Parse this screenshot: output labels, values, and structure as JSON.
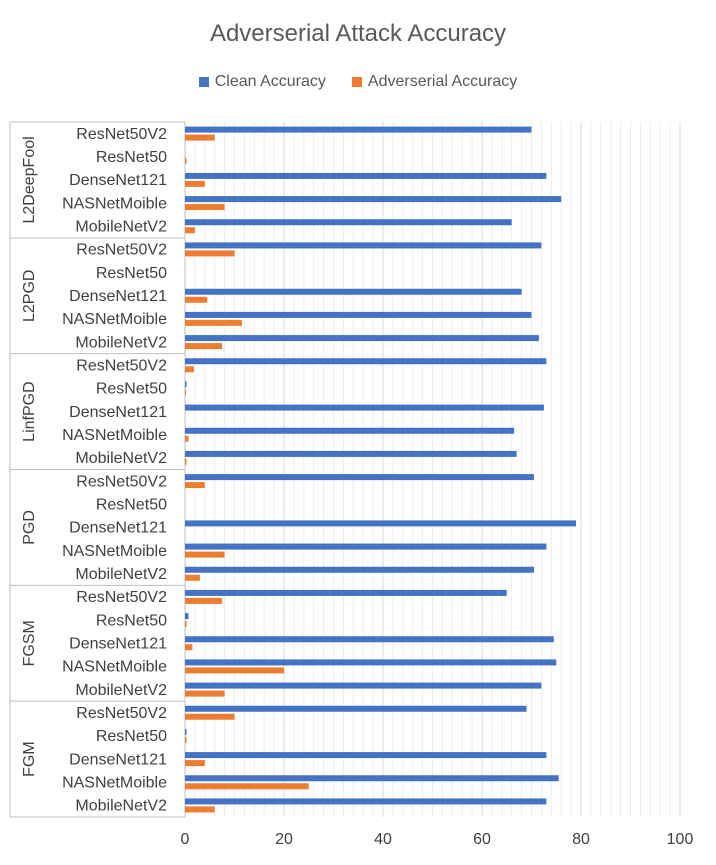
{
  "chart_data": {
    "type": "bar",
    "orientation": "horizontal",
    "title": "Adverserial Attack Accuracy",
    "xlabel": "",
    "ylabel": "",
    "xlim": [
      0,
      100
    ],
    "x_ticks": [
      0,
      20,
      40,
      60,
      80,
      100
    ],
    "minor_gridlines_step": 2,
    "colors": {
      "Clean Accuracy": "#4472C4",
      "Adverserial Accuracy": "#ED7D31"
    },
    "legend_position": "top",
    "legend": [
      "Clean Accuracy",
      "Adverserial Accuracy"
    ],
    "groups": [
      {
        "name": "L2DeepFool",
        "items": [
          {
            "model": "ResNet50V2",
            "clean": 70,
            "adv": 6
          },
          {
            "model": "ResNet50",
            "clean": 0,
            "adv": 0.3
          },
          {
            "model": "DenseNet121",
            "clean": 73,
            "adv": 4
          },
          {
            "model": "NASNetMoible",
            "clean": 76,
            "adv": 8
          },
          {
            "model": "MobileNetV2",
            "clean": 66,
            "adv": 2
          }
        ]
      },
      {
        "name": "L2PGD",
        "items": [
          {
            "model": "ResNet50V2",
            "clean": 72,
            "adv": 10
          },
          {
            "model": "ResNet50",
            "clean": 0,
            "adv": 0
          },
          {
            "model": "DenseNet121",
            "clean": 68,
            "adv": 4.5
          },
          {
            "model": "NASNetMoible",
            "clean": 70,
            "adv": 11.5
          },
          {
            "model": "MobileNetV2",
            "clean": 71.5,
            "adv": 7.5
          }
        ]
      },
      {
        "name": "LinfPGD",
        "items": [
          {
            "model": "ResNet50V2",
            "clean": 73,
            "adv": 1.8
          },
          {
            "model": "ResNet50",
            "clean": 0.3,
            "adv": 0.2
          },
          {
            "model": "DenseNet121",
            "clean": 72.5,
            "adv": 0
          },
          {
            "model": "NASNetMoible",
            "clean": 66.5,
            "adv": 0.7
          },
          {
            "model": "MobileNetV2",
            "clean": 67,
            "adv": 0.3
          }
        ]
      },
      {
        "name": "PGD",
        "items": [
          {
            "model": "ResNet50V2",
            "clean": 70.5,
            "adv": 4
          },
          {
            "model": "ResNet50",
            "clean": 0,
            "adv": 0
          },
          {
            "model": "DenseNet121",
            "clean": 79,
            "adv": 0
          },
          {
            "model": "NASNetMoible",
            "clean": 73,
            "adv": 8
          },
          {
            "model": "MobileNetV2",
            "clean": 70.5,
            "adv": 3
          }
        ]
      },
      {
        "name": "FGSM",
        "items": [
          {
            "model": "ResNet50V2",
            "clean": 65,
            "adv": 7.5
          },
          {
            "model": "ResNet50",
            "clean": 0.7,
            "adv": 0.3
          },
          {
            "model": "DenseNet121",
            "clean": 74.5,
            "adv": 1.5
          },
          {
            "model": "NASNetMoible",
            "clean": 75,
            "adv": 20
          },
          {
            "model": "MobileNetV2",
            "clean": 72,
            "adv": 8
          }
        ]
      },
      {
        "name": "FGM",
        "items": [
          {
            "model": "ResNet50V2",
            "clean": 69,
            "adv": 10
          },
          {
            "model": "ResNet50",
            "clean": 0.3,
            "adv": 0.3
          },
          {
            "model": "DenseNet121",
            "clean": 73,
            "adv": 4
          },
          {
            "model": "NASNetMoible",
            "clean": 75.5,
            "adv": 25
          },
          {
            "model": "MobileNetV2",
            "clean": 73,
            "adv": 6
          }
        ]
      }
    ]
  }
}
